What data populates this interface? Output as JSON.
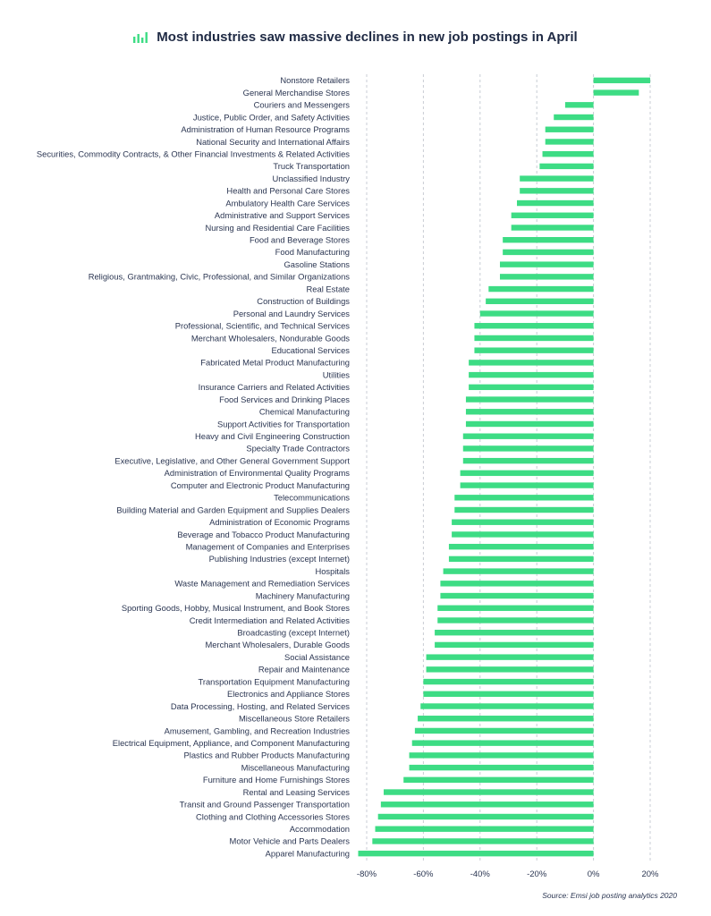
{
  "header": {
    "title": "Most industries saw massive declines in new job postings in April",
    "logo": "bar-chart-icon",
    "accent_color": "#3ddc84"
  },
  "chart_data": {
    "type": "bar",
    "orientation": "horizontal",
    "title": "Most industries saw massive declines in new job postings in April",
    "xlabel": "",
    "ylabel": "",
    "xlim": [
      -80,
      20
    ],
    "xticks": [
      -80,
      -60,
      -40,
      -20,
      0,
      20
    ],
    "xtick_labels": [
      "-80%",
      "-60%",
      "-40%",
      "-20%",
      "0%",
      "20%"
    ],
    "grid": true,
    "bar_color": "#3ddc84",
    "categories": [
      "Nonstore Retailers",
      "General Merchandise Stores",
      "Couriers and Messengers",
      "Justice, Public Order, and Safety Activities",
      "Administration of Human Resource Programs",
      "National Security and International Affairs",
      "Securities, Commodity Contracts, & Other Financial Investments & Related Activities",
      "Truck Transportation",
      "Unclassified Industry",
      "Health and Personal Care Stores",
      "Ambulatory Health Care Services",
      "Administrative and Support Services",
      "Nursing and Residential Care Facilities",
      "Food and Beverage Stores",
      "Food Manufacturing",
      "Gasoline Stations",
      "Religious, Grantmaking, Civic, Professional, and Similar Organizations",
      "Real Estate",
      "Construction of Buildings",
      "Personal and Laundry Services",
      "Professional, Scientific, and Technical Services",
      "Merchant Wholesalers, Nondurable Goods",
      "Educational Services",
      "Fabricated Metal Product Manufacturing",
      "Utilities",
      "Insurance Carriers and Related Activities",
      "Food Services and Drinking Places",
      "Chemical Manufacturing",
      "Support Activities for Transportation",
      "Heavy and Civil Engineering Construction",
      "Specialty Trade Contractors",
      "Executive, Legislative, and Other General Government Support",
      "Administration of Environmental Quality Programs",
      "Computer and Electronic Product Manufacturing",
      "Telecommunications",
      "Building Material and Garden Equipment and Supplies Dealers",
      "Administration of Economic Programs",
      "Beverage and Tobacco Product Manufacturing",
      "Management of Companies and Enterprises",
      "Publishing Industries (except Internet)",
      "Hospitals",
      "Waste Management and Remediation Services",
      "Machinery Manufacturing",
      "Sporting Goods, Hobby, Musical Instrument, and Book Stores",
      "Credit Intermediation and Related Activities",
      "Broadcasting (except Internet)",
      "Merchant Wholesalers, Durable Goods",
      "Social Assistance",
      "Repair and Maintenance",
      "Transportation Equipment Manufacturing",
      "Electronics and Appliance Stores",
      "Data Processing, Hosting, and Related Services",
      "Miscellaneous Store Retailers",
      "Amusement, Gambling, and Recreation Industries",
      "Electrical Equipment, Appliance, and Component Manufacturing",
      "Plastics and Rubber Products Manufacturing",
      "Miscellaneous Manufacturing",
      "Furniture and Home Furnishings Stores",
      "Rental and Leasing Services",
      "Transit and Ground Passenger Transportation",
      "Clothing and Clothing Accessories Stores",
      "Accommodation",
      "Motor Vehicle and Parts Dealers",
      "Apparel Manufacturing"
    ],
    "values": [
      20,
      16,
      -10,
      -14,
      -17,
      -17,
      -18,
      -19,
      -26,
      -26,
      -27,
      -29,
      -29,
      -32,
      -32,
      -33,
      -33,
      -37,
      -38,
      -40,
      -42,
      -42,
      -42,
      -44,
      -44,
      -44,
      -45,
      -45,
      -45,
      -46,
      -46,
      -46,
      -47,
      -47,
      -49,
      -49,
      -50,
      -50,
      -51,
      -51,
      -53,
      -54,
      -54,
      -55,
      -55,
      -56,
      -56,
      -59,
      -59,
      -60,
      -60,
      -61,
      -62,
      -63,
      -64,
      -65,
      -65,
      -67,
      -74,
      -75,
      -76,
      -77,
      -78,
      -83
    ]
  },
  "footer": {
    "source": "Source: Emsi job posting analytics 2020"
  }
}
